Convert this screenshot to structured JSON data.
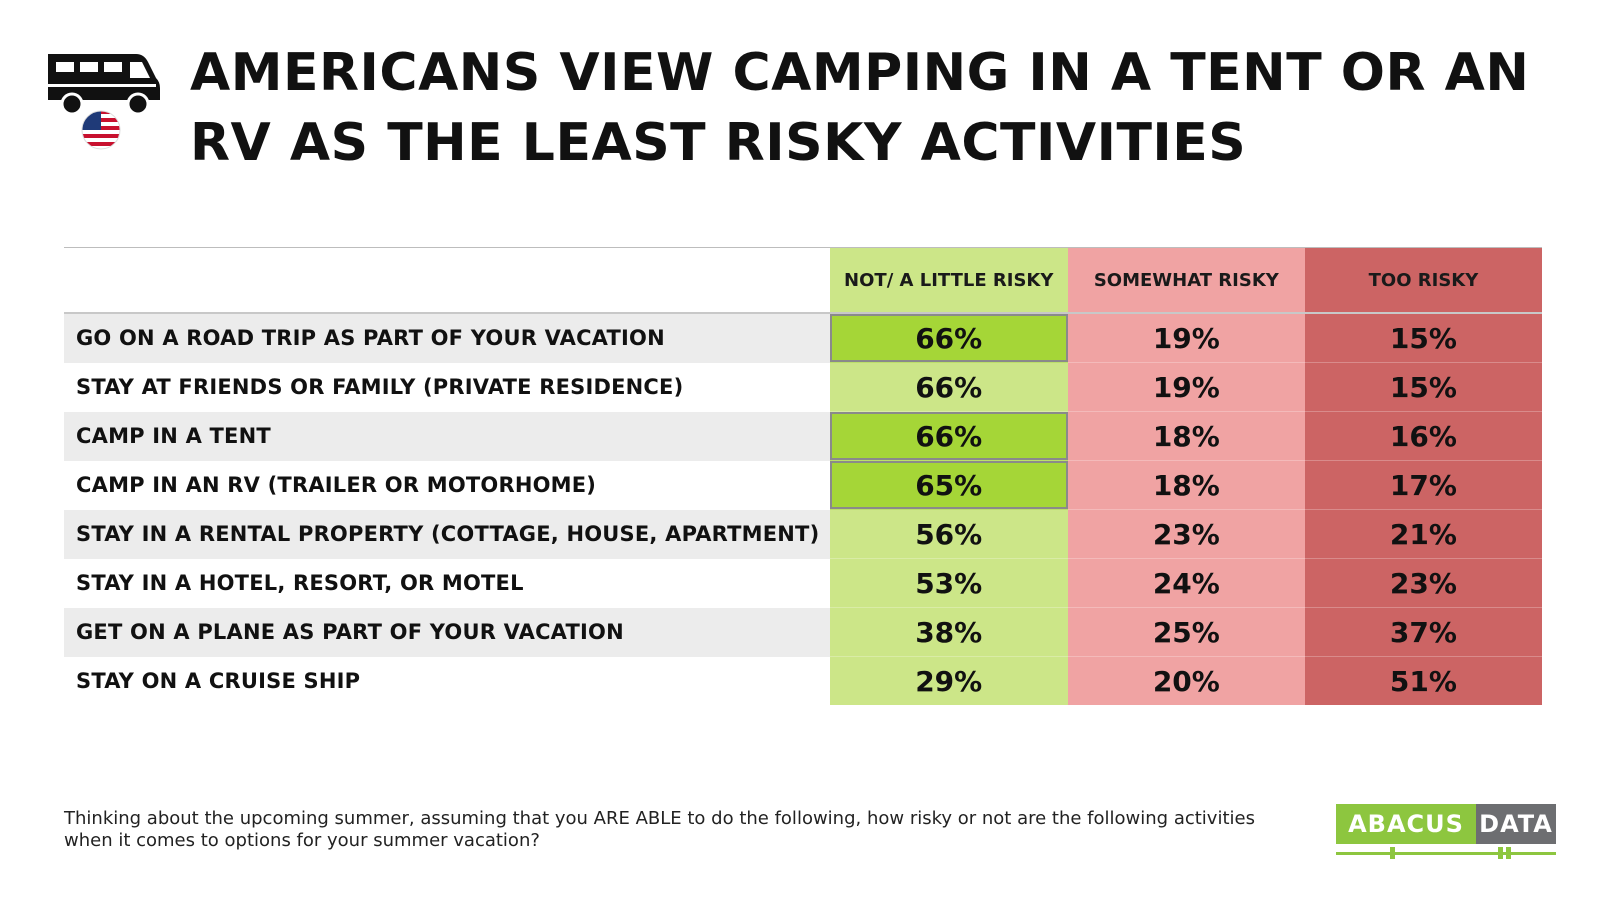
{
  "title": "AMERICANS VIEW CAMPING IN A TENT OR AN RV AS THE LEAST RISKY ACTIVITIES",
  "icons": {
    "vehicle": "rv-icon",
    "flag": "us-flag-icon"
  },
  "colors": {
    "green_light": "#cce688",
    "green_highlight": "#a5d637",
    "pink": "#f0a3a3",
    "red": "#cc6464"
  },
  "chart_data": {
    "type": "table",
    "columns": [
      "NOT/ A LITTLE RISKY",
      "SOMEWHAT RISKY",
      "TOO RISKY"
    ],
    "rows": [
      {
        "label": "GO ON A ROAD TRIP AS PART OF YOUR VACATION",
        "values": [
          "66%",
          "19%",
          "15%"
        ],
        "highlight": true
      },
      {
        "label": "STAY AT FRIENDS OR FAMILY (PRIVATE RESIDENCE)",
        "values": [
          "66%",
          "19%",
          "15%"
        ],
        "highlight": false
      },
      {
        "label": "CAMP IN A TENT",
        "values": [
          "66%",
          "18%",
          "16%"
        ],
        "highlight": true
      },
      {
        "label": "CAMP IN AN RV (TRAILER OR MOTORHOME)",
        "values": [
          "65%",
          "18%",
          "17%"
        ],
        "highlight": true
      },
      {
        "label": "STAY IN A RENTAL PROPERTY (COTTAGE, HOUSE, APARTMENT)",
        "values": [
          "56%",
          "23%",
          "21%"
        ],
        "highlight": false
      },
      {
        "label": "STAY IN A HOTEL, RESORT, OR MOTEL",
        "values": [
          "53%",
          "24%",
          "23%"
        ],
        "highlight": false
      },
      {
        "label": "GET ON A PLANE AS PART OF YOUR VACATION",
        "values": [
          "38%",
          "25%",
          "37%"
        ],
        "highlight": false
      },
      {
        "label": "STAY ON A CRUISE SHIP",
        "values": [
          "29%",
          "20%",
          "51%"
        ],
        "highlight": false
      }
    ]
  },
  "footnote": "Thinking about the upcoming summer, assuming that you ARE ABLE to do the following, how risky or not are the following activities when it comes to options for your summer vacation?",
  "logo": {
    "left": "ABACUS",
    "right": "DATA"
  }
}
